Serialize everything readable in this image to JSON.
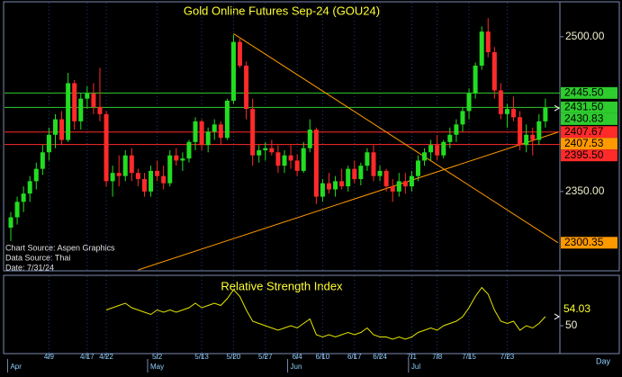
{
  "chart_data": {
    "type": "candlestick",
    "title": "Gold Online Futures Sep-24 (GOU24)",
    "notes": [
      "Chart Source: Aspen Graphics",
      "Data Source: Thai",
      "Date: 7/31/24"
    ],
    "x_unit": "Day",
    "categories": [
      null,
      null,
      null,
      null,
      null,
      null,
      "4/9",
      null,
      null,
      null,
      null,
      null,
      "4/17",
      null,
      null,
      "4/22",
      null,
      null,
      null,
      null,
      null,
      null,
      null,
      "5/2",
      null,
      null,
      null,
      null,
      null,
      null,
      "5/13",
      null,
      null,
      null,
      null,
      "5/20",
      null,
      null,
      null,
      null,
      "5/27",
      null,
      null,
      null,
      null,
      "6/4",
      null,
      null,
      null,
      "6/10",
      null,
      null,
      null,
      null,
      "6/17",
      null,
      null,
      null,
      "6/24",
      null,
      null,
      null,
      null,
      "7/1",
      null,
      null,
      null,
      "7/8",
      null,
      null,
      null,
      null,
      "7/15",
      null,
      null,
      null,
      null,
      null,
      "7/23",
      null,
      null,
      null,
      null,
      null,
      null
    ],
    "months": [
      "Apr",
      null,
      null,
      null,
      null,
      null,
      null,
      null,
      null,
      null,
      null,
      null,
      null,
      null,
      null,
      null,
      null,
      null,
      null,
      null,
      null,
      null,
      "May",
      null,
      null,
      null,
      null,
      null,
      null,
      null,
      null,
      null,
      null,
      null,
      null,
      null,
      null,
      null,
      null,
      null,
      null,
      null,
      null,
      null,
      "Jun",
      null,
      null,
      null,
      null,
      null,
      null,
      null,
      null,
      null,
      null,
      null,
      null,
      null,
      null,
      null,
      null,
      null,
      null,
      "Jul",
      null,
      null,
      null,
      null,
      null,
      null,
      null,
      null,
      null,
      null,
      null,
      null,
      null,
      null,
      null,
      null,
      null,
      null,
      null,
      null,
      null
    ],
    "open": [
      2315,
      2325,
      2340,
      2348,
      2360,
      2372,
      2388,
      2405,
      2420,
      2400,
      2455,
      2418,
      2440,
      2445,
      2432,
      2425,
      2360,
      2368,
      2365,
      2385,
      2368,
      2362,
      2350,
      2370,
      2365,
      2358,
      2385,
      2380,
      2382,
      2398,
      2418,
      2395,
      2408,
      2415,
      2402,
      2438,
      2495,
      2472,
      2430,
      2385,
      2390,
      2392,
      2388,
      2375,
      2385,
      2380,
      2370,
      2392,
      2410,
      2345,
      2358,
      2352,
      2360,
      2355,
      2372,
      2362,
      2375,
      2388,
      2365,
      2370,
      2355,
      2350,
      2360,
      2355,
      2365,
      2380,
      2388,
      2395,
      2385,
      2398,
      2405,
      2415,
      2428,
      2445,
      2472,
      2505,
      2485,
      2448,
      2425,
      2430,
      2422,
      2395,
      2405,
      2400,
      2418
    ],
    "high": [
      2330,
      2345,
      2355,
      2365,
      2378,
      2395,
      2412,
      2425,
      2428,
      2465,
      2458,
      2445,
      2452,
      2455,
      2470,
      2428,
      2375,
      2385,
      2390,
      2392,
      2372,
      2368,
      2375,
      2380,
      2375,
      2390,
      2392,
      2388,
      2400,
      2422,
      2420,
      2412,
      2420,
      2418,
      2440,
      2502,
      2498,
      2476,
      2440,
      2395,
      2398,
      2400,
      2395,
      2390,
      2395,
      2386,
      2398,
      2420,
      2412,
      2362,
      2368,
      2365,
      2372,
      2375,
      2380,
      2378,
      2392,
      2395,
      2375,
      2372,
      2362,
      2368,
      2368,
      2370,
      2385,
      2392,
      2400,
      2405,
      2400,
      2412,
      2420,
      2432,
      2450,
      2475,
      2510,
      2518,
      2490,
      2455,
      2435,
      2442,
      2428,
      2415,
      2412,
      2425,
      2440
    ],
    "low": [
      2302,
      2318,
      2330,
      2340,
      2352,
      2366,
      2380,
      2392,
      2395,
      2398,
      2410,
      2410,
      2430,
      2425,
      2418,
      2355,
      2345,
      2355,
      2360,
      2360,
      2355,
      2345,
      2345,
      2360,
      2352,
      2355,
      2375,
      2370,
      2378,
      2390,
      2390,
      2388,
      2400,
      2395,
      2400,
      2435,
      2470,
      2420,
      2375,
      2378,
      2380,
      2385,
      2368,
      2368,
      2372,
      2365,
      2368,
      2388,
      2338,
      2340,
      2348,
      2345,
      2352,
      2350,
      2358,
      2356,
      2370,
      2360,
      2360,
      2350,
      2340,
      2345,
      2348,
      2350,
      2360,
      2375,
      2380,
      2380,
      2382,
      2392,
      2398,
      2408,
      2420,
      2440,
      2468,
      2480,
      2440,
      2420,
      2412,
      2418,
      2390,
      2388,
      2385,
      2395,
      2412
    ],
    "close": [
      2325,
      2340,
      2348,
      2360,
      2372,
      2388,
      2405,
      2420,
      2400,
      2455,
      2418,
      2440,
      2445,
      2432,
      2425,
      2360,
      2368,
      2365,
      2385,
      2368,
      2362,
      2350,
      2370,
      2365,
      2358,
      2385,
      2380,
      2382,
      2398,
      2418,
      2395,
      2408,
      2415,
      2402,
      2438,
      2495,
      2472,
      2430,
      2385,
      2390,
      2392,
      2388,
      2375,
      2385,
      2380,
      2370,
      2392,
      2410,
      2345,
      2358,
      2352,
      2360,
      2355,
      2372,
      2362,
      2375,
      2388,
      2365,
      2370,
      2355,
      2350,
      2360,
      2355,
      2365,
      2380,
      2388,
      2395,
      2385,
      2398,
      2405,
      2415,
      2428,
      2445,
      2472,
      2505,
      2485,
      2448,
      2425,
      2430,
      2422,
      2395,
      2405,
      2400,
      2418,
      2431
    ],
    "colors": {
      "up": "#22dd22",
      "down": "#ff2a2a"
    },
    "ylim": [
      2274,
      2533
    ],
    "yticks": [
      {
        "value": 2500,
        "label": "2500.00"
      },
      {
        "value": 2350,
        "label": "2350.00"
      }
    ],
    "levels": [
      {
        "value": 2445.5,
        "label": "2445.50",
        "color": "#2ecc2e"
      },
      {
        "value": 2431.5,
        "label": "2431.50",
        "color": "#2ecc2e"
      },
      {
        "value": 2407.67,
        "label": "2407.67",
        "color": "#ff2a2a"
      },
      {
        "value": 2395.5,
        "label": "2395.50",
        "color": "#ff2a2a"
      }
    ],
    "last_price": 2430.83,
    "trendlines": [
      {
        "x": [
          35,
          86
        ],
        "values": [
          2503,
          2300.35
        ],
        "color": "#ff9900"
      },
      {
        "x": [
          20,
          86
        ],
        "values": [
          2274,
          2407.53
        ],
        "color": "#ff9900"
      }
    ],
    "rsi": {
      "title": "Relative Strength Index",
      "color": "#e6e600",
      "ylim": [
        38,
        72
      ],
      "yticks": [
        50
      ],
      "values": [
        null,
        null,
        null,
        null,
        null,
        null,
        null,
        null,
        null,
        null,
        null,
        null,
        null,
        null,
        null,
        57,
        58,
        59,
        60,
        58,
        57,
        56,
        55,
        57,
        56,
        57,
        56,
        57,
        58,
        60,
        58,
        59,
        60,
        59,
        62,
        66,
        63,
        57,
        52,
        51,
        50,
        49,
        48,
        49,
        50,
        49,
        51,
        53,
        46,
        45,
        46,
        45,
        46,
        47,
        46,
        47,
        49,
        46,
        45,
        45,
        44,
        45,
        44,
        45,
        47,
        48,
        49,
        48,
        50,
        51,
        52,
        54,
        58,
        63,
        67,
        64,
        57,
        52,
        51,
        52,
        48,
        50,
        49,
        51,
        54.03
      ]
    }
  }
}
